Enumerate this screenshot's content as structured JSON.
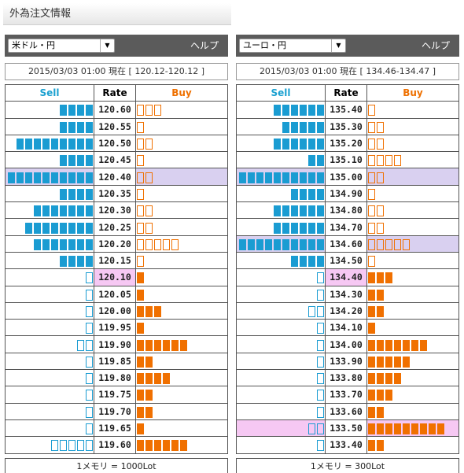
{
  "page": {
    "title": "外為注文情報"
  },
  "colors": {
    "sell": "#1a9cd2",
    "buy": "#f07000",
    "current_rate_bg": "#f6c8f3",
    "header_bg": "#5b5b5b"
  },
  "panels": [
    {
      "pair": "米ドル・円",
      "help": "ヘルプ",
      "timestamp": "2015/03/03  01:00 現在 [ 120.12-120.12 ]",
      "headers": {
        "sell": "Sell",
        "rate": "Rate",
        "buy": "Buy"
      },
      "footer": "1メモリ = 1000Lot",
      "rows": [
        {
          "rate": "120.60",
          "sell": 4,
          "sell_style": "fill",
          "buy": 3,
          "buy_style": "outline"
        },
        {
          "rate": "120.55",
          "sell": 4,
          "sell_style": "fill",
          "buy": 1,
          "buy_style": "outline"
        },
        {
          "rate": "120.50",
          "sell": 9,
          "sell_style": "fill",
          "buy": 2,
          "buy_style": "outline"
        },
        {
          "rate": "120.45",
          "sell": 4,
          "sell_style": "fill",
          "buy": 1,
          "buy_style": "outline"
        },
        {
          "rate": "120.40",
          "sell": 10,
          "sell_style": "fill",
          "buy": 2,
          "buy_style": "outline",
          "highlight": "purple"
        },
        {
          "rate": "120.35",
          "sell": 4,
          "sell_style": "fill",
          "buy": 1,
          "buy_style": "outline"
        },
        {
          "rate": "120.30",
          "sell": 7,
          "sell_style": "fill",
          "buy": 2,
          "buy_style": "outline"
        },
        {
          "rate": "120.25",
          "sell": 8,
          "sell_style": "fill",
          "buy": 2,
          "buy_style": "outline"
        },
        {
          "rate": "120.20",
          "sell": 7,
          "sell_style": "fill",
          "buy": 5,
          "buy_style": "outline"
        },
        {
          "rate": "120.15",
          "sell": 4,
          "sell_style": "fill",
          "buy": 1,
          "buy_style": "outline"
        },
        {
          "rate": "120.10",
          "sell": 1,
          "sell_style": "outline",
          "buy": 1,
          "buy_style": "fill",
          "current": true
        },
        {
          "rate": "120.05",
          "sell": 1,
          "sell_style": "outline",
          "buy": 1,
          "buy_style": "fill"
        },
        {
          "rate": "120.00",
          "sell": 1,
          "sell_style": "outline",
          "buy": 3,
          "buy_style": "fill"
        },
        {
          "rate": "119.95",
          "sell": 1,
          "sell_style": "outline",
          "buy": 1,
          "buy_style": "fill"
        },
        {
          "rate": "119.90",
          "sell": 2,
          "sell_style": "outline",
          "buy": 6,
          "buy_style": "fill"
        },
        {
          "rate": "119.85",
          "sell": 1,
          "sell_style": "outline",
          "buy": 2,
          "buy_style": "fill"
        },
        {
          "rate": "119.80",
          "sell": 1,
          "sell_style": "outline",
          "buy": 4,
          "buy_style": "fill"
        },
        {
          "rate": "119.75",
          "sell": 1,
          "sell_style": "outline",
          "buy": 2,
          "buy_style": "fill"
        },
        {
          "rate": "119.70",
          "sell": 1,
          "sell_style": "outline",
          "buy": 2,
          "buy_style": "fill"
        },
        {
          "rate": "119.65",
          "sell": 1,
          "sell_style": "outline",
          "buy": 1,
          "buy_style": "fill"
        },
        {
          "rate": "119.60",
          "sell": 5,
          "sell_style": "outline",
          "buy": 6,
          "buy_style": "fill"
        }
      ]
    },
    {
      "pair": "ユーロ・円",
      "help": "ヘルプ",
      "timestamp": "2015/03/03  01:00 現在 [ 134.46-134.47 ]",
      "headers": {
        "sell": "Sell",
        "rate": "Rate",
        "buy": "Buy"
      },
      "footer": "1メモリ = 300Lot",
      "rows": [
        {
          "rate": "135.40",
          "sell": 6,
          "sell_style": "fill",
          "buy": 1,
          "buy_style": "outline"
        },
        {
          "rate": "135.30",
          "sell": 5,
          "sell_style": "fill",
          "buy": 2,
          "buy_style": "outline"
        },
        {
          "rate": "135.20",
          "sell": 6,
          "sell_style": "fill",
          "buy": 2,
          "buy_style": "outline"
        },
        {
          "rate": "135.10",
          "sell": 2,
          "sell_style": "fill",
          "buy": 4,
          "buy_style": "outline"
        },
        {
          "rate": "135.00",
          "sell": 10,
          "sell_style": "fill",
          "buy": 2,
          "buy_style": "outline",
          "highlight": "purple"
        },
        {
          "rate": "134.90",
          "sell": 4,
          "sell_style": "fill",
          "buy": 1,
          "buy_style": "outline"
        },
        {
          "rate": "134.80",
          "sell": 6,
          "sell_style": "fill",
          "buy": 2,
          "buy_style": "outline"
        },
        {
          "rate": "134.70",
          "sell": 6,
          "sell_style": "fill",
          "buy": 2,
          "buy_style": "outline"
        },
        {
          "rate": "134.60",
          "sell": 10,
          "sell_style": "fill",
          "buy": 5,
          "buy_style": "outline",
          "highlight": "purple"
        },
        {
          "rate": "134.50",
          "sell": 4,
          "sell_style": "fill",
          "buy": 1,
          "buy_style": "outline"
        },
        {
          "rate": "134.40",
          "sell": 1,
          "sell_style": "outline",
          "buy": 3,
          "buy_style": "fill",
          "current": true
        },
        {
          "rate": "134.30",
          "sell": 1,
          "sell_style": "outline",
          "buy": 2,
          "buy_style": "fill"
        },
        {
          "rate": "134.20",
          "sell": 2,
          "sell_style": "outline",
          "buy": 2,
          "buy_style": "fill"
        },
        {
          "rate": "134.10",
          "sell": 1,
          "sell_style": "outline",
          "buy": 1,
          "buy_style": "fill"
        },
        {
          "rate": "134.00",
          "sell": 1,
          "sell_style": "outline",
          "buy": 7,
          "buy_style": "fill"
        },
        {
          "rate": "133.90",
          "sell": 1,
          "sell_style": "outline",
          "buy": 5,
          "buy_style": "fill"
        },
        {
          "rate": "133.80",
          "sell": 1,
          "sell_style": "outline",
          "buy": 4,
          "buy_style": "fill"
        },
        {
          "rate": "133.70",
          "sell": 1,
          "sell_style": "outline",
          "buy": 3,
          "buy_style": "fill"
        },
        {
          "rate": "133.60",
          "sell": 1,
          "sell_style": "outline",
          "buy": 2,
          "buy_style": "fill"
        },
        {
          "rate": "133.50",
          "sell": 2,
          "sell_style": "outline",
          "buy": 9,
          "buy_style": "fill",
          "highlight": "pink"
        },
        {
          "rate": "133.40",
          "sell": 1,
          "sell_style": "outline",
          "buy": 2,
          "buy_style": "fill"
        }
      ]
    }
  ]
}
